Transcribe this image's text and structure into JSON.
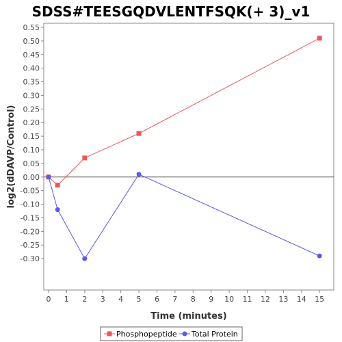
{
  "chart_data": {
    "type": "line",
    "title": "SDSS#TEESGQDVLENTFSQK(+ 3)_v1",
    "xlabel": "Time (minutes)",
    "ylabel": "log2(dDAVP/Control)",
    "xlim": [
      0,
      15.6
    ],
    "ylim": [
      -0.35,
      0.55
    ],
    "x_ticks": [
      0,
      1,
      2,
      3,
      4,
      5,
      6,
      7,
      8,
      9,
      10,
      11,
      12,
      13,
      14,
      15
    ],
    "y_ticks": [
      -0.3,
      -0.25,
      -0.2,
      -0.15,
      -0.1,
      -0.05,
      0.0,
      0.05,
      0.1,
      0.15,
      0.2,
      0.25,
      0.3,
      0.35,
      0.4,
      0.45,
      0.5,
      0.55
    ],
    "x_tick_labels": [
      "0",
      "1",
      "2",
      "3",
      "4",
      "5",
      "6",
      "7",
      "8",
      "9",
      "10",
      "11",
      "12",
      "13",
      "14",
      "15"
    ],
    "y_tick_labels": [
      "-0.30",
      "-0.25",
      "-0.20",
      "-0.15",
      "-0.10",
      "-0.05",
      "0.00",
      "0.05",
      "0.10",
      "0.15",
      "0.20",
      "0.25",
      "0.30",
      "0.35",
      "0.40",
      "0.45",
      "0.50",
      "0.55"
    ],
    "zero_line": true,
    "grid": false,
    "legend_position": "bottom",
    "series": [
      {
        "name": "Phosphopeptide",
        "color": "#e8595c",
        "marker": "square",
        "x": [
          0,
          0.5,
          2,
          5,
          15
        ],
        "y": [
          0.0,
          -0.03,
          0.07,
          0.16,
          0.51
        ]
      },
      {
        "name": "Total Protein",
        "color": "#5b5be8",
        "marker": "circle",
        "x": [
          0,
          0.5,
          2,
          5,
          15
        ],
        "y": [
          0.0,
          -0.12,
          -0.3,
          0.01,
          -0.29
        ]
      }
    ]
  }
}
